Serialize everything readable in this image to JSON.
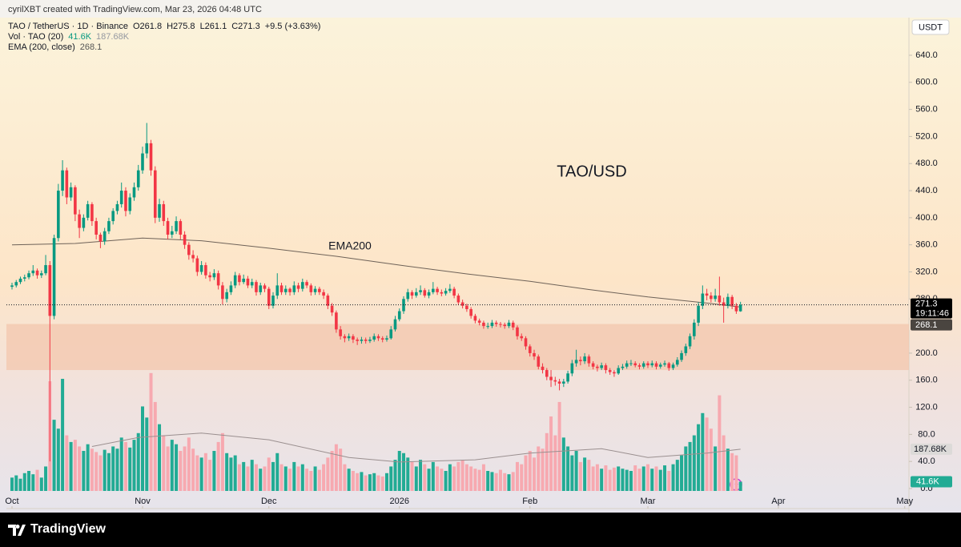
{
  "header": {
    "credit": "cyrilXBT created with TradingView.com, Mar 23, 2026 04:48 UTC",
    "symbol": "TAO / TetherUS · 1D · Binance",
    "open": "O261.8",
    "high": "H275.8",
    "low": "L261.1",
    "close": "C271.3",
    "change": "+9.5 (+3.63%)",
    "volume_label": "Vol · TAO (20)",
    "volume_value": "41.6K",
    "volume_ma_value": "187.68K",
    "ema_label": "EMA (200, close)",
    "ema_value": "268.1",
    "currency": "USDT"
  },
  "footer": {
    "brand": "TradingView"
  },
  "chart_data": {
    "type": "candlestick",
    "title": "TAO/USD",
    "annotation": "EMA200",
    "up_color": "#089981",
    "down_color": "#f23645",
    "volume_up_color": "#22ab94",
    "volume_down_color": "#f7a9b0",
    "xlim": [
      -1.33,
      213
    ],
    "xticks": [
      {
        "value": 0,
        "label": "Oct"
      },
      {
        "value": 31,
        "label": "Nov"
      },
      {
        "value": 61,
        "label": "Dec"
      },
      {
        "value": 92,
        "label": "2026"
      },
      {
        "value": 123,
        "label": "Feb"
      },
      {
        "value": 151,
        "label": "Mar"
      },
      {
        "value": 182,
        "label": "Apr"
      },
      {
        "value": 212,
        "label": "May"
      }
    ],
    "ylim": [
      -29.6,
      695.6
    ],
    "yticks": [
      {
        "value": 0,
        "label": "0.0"
      },
      {
        "value": 40,
        "label": "40.0"
      },
      {
        "value": 80,
        "label": "80.0"
      },
      {
        "value": 120,
        "label": "120.0"
      },
      {
        "value": 160,
        "label": "160.0"
      },
      {
        "value": 200,
        "label": "200.0"
      },
      {
        "value": 280,
        "label": "280.0"
      },
      {
        "value": 320,
        "label": "320.0"
      },
      {
        "value": 360,
        "label": "360.0"
      },
      {
        "value": 400,
        "label": "400.0"
      },
      {
        "value": 440,
        "label": "440.0"
      },
      {
        "value": 480,
        "label": "480.0"
      },
      {
        "value": 520,
        "label": "520.0"
      },
      {
        "value": 560,
        "label": "560.0"
      },
      {
        "value": 600,
        "label": "600.0"
      },
      {
        "value": 640,
        "label": "640.0"
      }
    ],
    "zone": [
      175,
      243
    ],
    "zone_color": "#f3c7ad",
    "last_price": 271.3,
    "countdown": "19:11:46",
    "ema_last": 268.1,
    "ohlc": [
      [
        298,
        304,
        294,
        300
      ],
      [
        300,
        308,
        297,
        305
      ],
      [
        305,
        313,
        302,
        310
      ],
      [
        310,
        316,
        306,
        312
      ],
      [
        312,
        322,
        309,
        318
      ],
      [
        318,
        330,
        314,
        322
      ],
      [
        322,
        325,
        310,
        315
      ],
      [
        315,
        322,
        311,
        318
      ],
      [
        318,
        345,
        315,
        330
      ],
      [
        330,
        336,
        40,
        255
      ],
      [
        255,
        375,
        250,
        370
      ],
      [
        370,
        450,
        365,
        440
      ],
      [
        440,
        485,
        432,
        470
      ],
      [
        470,
        474,
        420,
        430
      ],
      [
        430,
        452,
        425,
        445
      ],
      [
        445,
        448,
        395,
        405
      ],
      [
        405,
        412,
        370,
        385
      ],
      [
        385,
        405,
        380,
        400
      ],
      [
        400,
        425,
        396,
        420
      ],
      [
        420,
        423,
        388,
        395
      ],
      [
        395,
        400,
        368,
        375
      ],
      [
        375,
        378,
        355,
        365
      ],
      [
        365,
        385,
        360,
        380
      ],
      [
        380,
        400,
        376,
        395
      ],
      [
        395,
        414,
        390,
        410
      ],
      [
        410,
        425,
        405,
        420
      ],
      [
        420,
        452,
        415,
        440
      ],
      [
        440,
        445,
        402,
        410
      ],
      [
        410,
        436,
        405,
        430
      ],
      [
        430,
        452,
        425,
        445
      ],
      [
        445,
        478,
        440,
        470
      ],
      [
        470,
        505,
        465,
        495
      ],
      [
        495,
        540,
        488,
        510
      ],
      [
        510,
        515,
        462,
        470
      ],
      [
        470,
        476,
        392,
        400
      ],
      [
        400,
        428,
        394,
        420
      ],
      [
        420,
        425,
        388,
        395
      ],
      [
        395,
        400,
        368,
        375
      ],
      [
        375,
        388,
        370,
        380
      ],
      [
        380,
        402,
        376,
        395
      ],
      [
        395,
        398,
        368,
        375
      ],
      [
        375,
        380,
        354,
        360
      ],
      [
        360,
        364,
        338,
        345
      ],
      [
        345,
        352,
        334,
        340
      ],
      [
        340,
        344,
        314,
        320
      ],
      [
        320,
        336,
        316,
        330
      ],
      [
        330,
        334,
        310,
        315
      ],
      [
        315,
        320,
        306,
        312
      ],
      [
        312,
        324,
        308,
        318
      ],
      [
        318,
        322,
        294,
        300
      ],
      [
        300,
        305,
        272,
        280
      ],
      [
        280,
        295,
        275,
        290
      ],
      [
        290,
        306,
        286,
        300
      ],
      [
        300,
        320,
        296,
        315
      ],
      [
        315,
        318,
        300,
        305
      ],
      [
        305,
        316,
        302,
        310
      ],
      [
        310,
        314,
        296,
        300
      ],
      [
        300,
        310,
        296,
        305
      ],
      [
        305,
        308,
        285,
        290
      ],
      [
        290,
        304,
        286,
        300
      ],
      [
        300,
        303,
        290,
        295
      ],
      [
        295,
        298,
        265,
        270
      ],
      [
        270,
        290,
        266,
        285
      ],
      [
        285,
        318,
        280,
        300
      ],
      [
        300,
        304,
        286,
        290
      ],
      [
        290,
        300,
        286,
        295
      ],
      [
        295,
        297,
        285,
        290
      ],
      [
        290,
        306,
        286,
        300
      ],
      [
        300,
        304,
        290,
        295
      ],
      [
        295,
        310,
        291,
        305
      ],
      [
        305,
        308,
        296,
        300
      ],
      [
        300,
        303,
        285,
        290
      ],
      [
        290,
        299,
        286,
        295
      ],
      [
        295,
        298,
        286,
        290
      ],
      [
        290,
        294,
        280,
        285
      ],
      [
        285,
        288,
        265,
        270
      ],
      [
        270,
        274,
        255,
        260
      ],
      [
        260,
        263,
        230,
        235
      ],
      [
        235,
        240,
        220,
        225
      ],
      [
        225,
        228,
        216,
        222
      ],
      [
        222,
        229,
        218,
        225
      ],
      [
        225,
        228,
        215,
        220
      ],
      [
        220,
        223,
        212,
        218
      ],
      [
        218,
        224,
        214,
        220
      ],
      [
        220,
        223,
        214,
        218
      ],
      [
        218,
        224,
        215,
        220
      ],
      [
        220,
        229,
        217,
        225
      ],
      [
        225,
        228,
        218,
        222
      ],
      [
        222,
        225,
        216,
        220
      ],
      [
        220,
        226,
        217,
        222
      ],
      [
        222,
        240,
        220,
        235
      ],
      [
        235,
        255,
        232,
        250
      ],
      [
        250,
        266,
        247,
        262
      ],
      [
        262,
        284,
        258,
        280
      ],
      [
        280,
        295,
        276,
        290
      ],
      [
        290,
        293,
        280,
        285
      ],
      [
        285,
        296,
        282,
        290
      ],
      [
        290,
        300,
        286,
        293
      ],
      [
        293,
        296,
        282,
        285
      ],
      [
        285,
        294,
        281,
        290
      ],
      [
        290,
        305,
        287,
        295
      ],
      [
        295,
        298,
        286,
        290
      ],
      [
        290,
        294,
        284,
        288
      ],
      [
        288,
        296,
        285,
        292
      ],
      [
        292,
        302,
        289,
        295
      ],
      [
        295,
        298,
        281,
        285
      ],
      [
        285,
        288,
        271,
        275
      ],
      [
        275,
        279,
        266,
        270
      ],
      [
        270,
        273,
        261,
        265
      ],
      [
        265,
        268,
        251,
        255
      ],
      [
        255,
        258,
        244,
        248
      ],
      [
        248,
        251,
        241,
        245
      ],
      [
        245,
        248,
        236,
        240
      ],
      [
        240,
        245,
        236,
        240
      ],
      [
        240,
        249,
        237,
        245
      ],
      [
        245,
        248,
        239,
        243
      ],
      [
        243,
        246,
        238,
        242
      ],
      [
        242,
        245,
        236,
        240
      ],
      [
        240,
        249,
        237,
        245
      ],
      [
        245,
        248,
        234,
        238
      ],
      [
        238,
        241,
        220,
        225
      ],
      [
        225,
        229,
        218,
        222
      ],
      [
        222,
        225,
        205,
        210
      ],
      [
        210,
        213,
        195,
        200
      ],
      [
        200,
        205,
        190,
        195
      ],
      [
        195,
        198,
        176,
        180
      ],
      [
        180,
        185,
        170,
        175
      ],
      [
        175,
        178,
        160,
        165
      ],
      [
        165,
        175,
        150,
        160
      ],
      [
        160,
        165,
        152,
        158
      ],
      [
        158,
        162,
        145,
        155
      ],
      [
        155,
        162,
        150,
        158
      ],
      [
        158,
        174,
        155,
        170
      ],
      [
        170,
        190,
        166,
        185
      ],
      [
        185,
        205,
        180,
        190
      ],
      [
        190,
        195,
        182,
        188
      ],
      [
        188,
        200,
        184,
        195
      ],
      [
        195,
        198,
        180,
        185
      ],
      [
        185,
        188,
        176,
        180
      ],
      [
        180,
        183,
        173,
        178
      ],
      [
        178,
        186,
        175,
        182
      ],
      [
        182,
        185,
        170,
        175
      ],
      [
        175,
        178,
        168,
        172
      ],
      [
        172,
        175,
        165,
        170
      ],
      [
        170,
        182,
        168,
        178
      ],
      [
        178,
        184,
        175,
        180
      ],
      [
        180,
        189,
        177,
        185
      ],
      [
        185,
        190,
        181,
        185
      ],
      [
        185,
        188,
        179,
        182
      ],
      [
        182,
        185,
        176,
        180
      ],
      [
        180,
        188,
        177,
        185
      ],
      [
        185,
        188,
        178,
        182
      ],
      [
        182,
        189,
        179,
        185
      ],
      [
        185,
        188,
        176,
        180
      ],
      [
        180,
        186,
        177,
        183
      ],
      [
        183,
        189,
        180,
        185
      ],
      [
        185,
        187,
        174,
        178
      ],
      [
        178,
        186,
        175,
        183
      ],
      [
        183,
        194,
        180,
        190
      ],
      [
        190,
        204,
        187,
        200
      ],
      [
        200,
        214,
        196,
        210
      ],
      [
        210,
        229,
        206,
        225
      ],
      [
        225,
        250,
        220,
        245
      ],
      [
        245,
        275,
        240,
        270
      ],
      [
        270,
        300,
        265,
        288
      ],
      [
        288,
        295,
        278,
        285
      ],
      [
        285,
        290,
        275,
        280
      ],
      [
        280,
        295,
        276,
        285
      ],
      [
        285,
        313,
        270,
        275
      ],
      [
        275,
        282,
        245,
        270
      ],
      [
        270,
        288,
        266,
        283
      ],
      [
        283,
        286,
        265,
        270
      ],
      [
        270,
        274,
        258,
        261.8
      ],
      [
        261.8,
        275.8,
        261.1,
        271.3
      ]
    ],
    "volume": {
      "vlim": [
        0,
        2128
      ],
      "values": [
        60,
        70,
        55,
        80,
        90,
        75,
        95,
        60,
        110,
        493,
        320,
        280,
        504,
        250,
        220,
        230,
        200,
        180,
        210,
        190,
        175,
        160,
        185,
        170,
        200,
        190,
        240,
        220,
        195,
        230,
        260,
        380,
        330,
        530,
        400,
        300,
        250,
        200,
        230,
        210,
        180,
        200,
        240,
        190,
        160,
        150,
        170,
        140,
        180,
        220,
        260,
        170,
        150,
        160,
        120,
        130,
        110,
        140,
        120,
        100,
        110,
        150,
        130,
        170,
        120,
        110,
        100,
        130,
        110,
        120,
        100,
        90,
        110,
        95,
        120,
        150,
        180,
        210,
        190,
        120,
        100,
        90,
        80,
        85,
        70,
        75,
        80,
        70,
        65,
        80,
        110,
        140,
        180,
        170,
        150,
        130,
        110,
        140,
        120,
        100,
        130,
        110,
        100,
        90,
        120,
        110,
        130,
        140,
        120,
        110,
        100,
        95,
        120,
        90,
        85,
        80,
        95,
        80,
        75,
        85,
        130,
        120,
        160,
        180,
        150,
        200,
        190,
        260,
        335,
        250,
        400,
        240,
        200,
        160,
        180,
        130,
        150,
        140,
        110,
        120,
        100,
        115,
        95,
        105,
        110,
        100,
        95,
        90,
        115,
        100,
        110,
        120,
        100,
        110,
        95,
        115,
        90,
        120,
        140,
        160,
        200,
        220,
        250,
        300,
        350,
        330,
        280,
        200,
        430,
        250,
        190,
        170,
        160,
        41.6
      ],
      "ma": {
        "color": "#9a8f8f",
        "x": [
          19,
          30,
          45,
          61,
          80,
          92,
          110,
          123,
          140,
          151,
          165,
          173
        ],
        "values": [
          200,
          240,
          260,
          230,
          150,
          130,
          140,
          170,
          190,
          150,
          170,
          187.68
        ]
      },
      "ma_badge": {
        "value": 187.68,
        "label": "187.68K"
      },
      "last_badge": {
        "value": 41.6,
        "label": "41.6K"
      }
    },
    "ema": {
      "color": "#6e6258",
      "x": [
        0,
        15,
        31,
        45,
        61,
        77,
        92,
        108,
        123,
        137,
        151,
        165,
        173
      ],
      "values": [
        360,
        362,
        370,
        366,
        355,
        343,
        330,
        317,
        306,
        294,
        283,
        274,
        268.1
      ]
    }
  }
}
